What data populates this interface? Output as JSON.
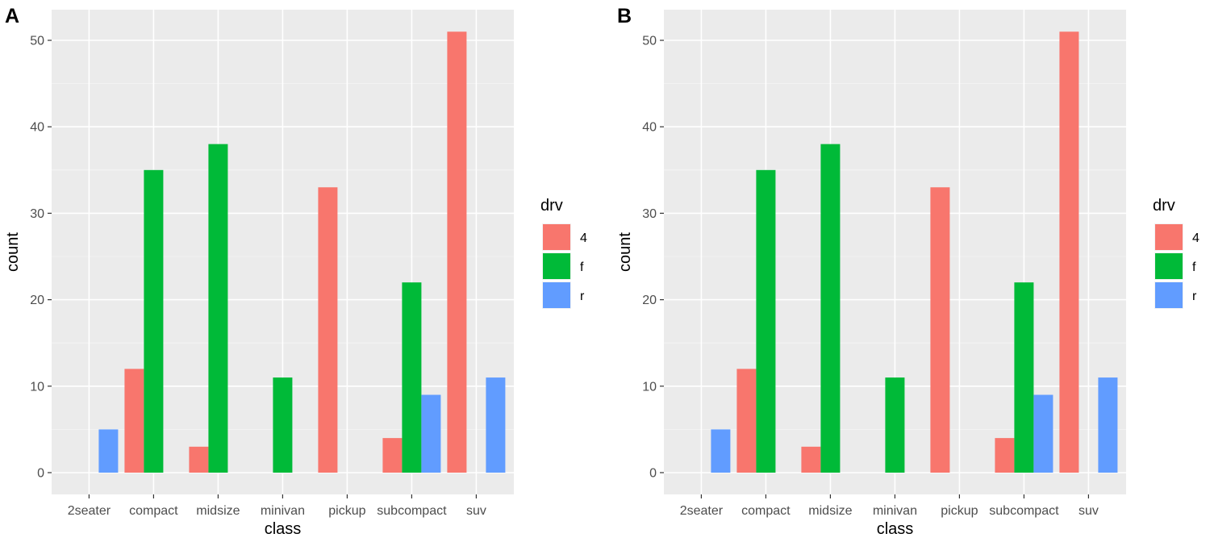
{
  "panels": [
    {
      "tag": "A"
    },
    {
      "tag": "B"
    }
  ],
  "chart_data": [
    {
      "type": "bar",
      "panel": "A",
      "xlabel": "class",
      "ylabel": "count",
      "ylim": [
        0,
        53
      ],
      "yticks": [
        0,
        10,
        20,
        30,
        40,
        50
      ],
      "categories": [
        "2seater",
        "compact",
        "midsize",
        "minivan",
        "pickup",
        "subcompact",
        "suv"
      ],
      "legend": {
        "title": "drv",
        "placement": "right"
      },
      "grid": true,
      "series": [
        {
          "name": "4",
          "color": "#F8766D",
          "values": [
            null,
            12,
            3,
            null,
            33,
            4,
            51
          ]
        },
        {
          "name": "f",
          "color": "#00BA38",
          "values": [
            null,
            35,
            38,
            11,
            null,
            22,
            null
          ]
        },
        {
          "name": "r",
          "color": "#619CFF",
          "values": [
            5,
            null,
            null,
            null,
            null,
            9,
            11
          ]
        }
      ]
    },
    {
      "type": "bar",
      "panel": "B",
      "xlabel": "class",
      "ylabel": "count",
      "ylim": [
        0,
        53
      ],
      "yticks": [
        0,
        10,
        20,
        30,
        40,
        50
      ],
      "categories": [
        "2seater",
        "compact",
        "midsize",
        "minivan",
        "pickup",
        "subcompact",
        "suv"
      ],
      "legend": {
        "title": "drv",
        "placement": "right"
      },
      "grid": true,
      "series": [
        {
          "name": "4",
          "color": "#F8766D",
          "values": [
            null,
            12,
            3,
            null,
            33,
            4,
            51
          ]
        },
        {
          "name": "f",
          "color": "#00BA38",
          "values": [
            null,
            35,
            38,
            11,
            null,
            22,
            null
          ]
        },
        {
          "name": "r",
          "color": "#619CFF",
          "values": [
            5,
            null,
            null,
            null,
            null,
            9,
            11
          ]
        }
      ]
    }
  ]
}
